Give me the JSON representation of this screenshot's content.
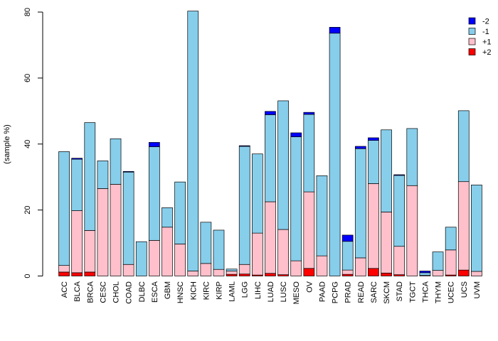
{
  "chart_data": {
    "type": "bar",
    "stacked": true,
    "title": "",
    "xlabel": "",
    "ylabel": "(sample %)",
    "ylim": [
      0,
      80
    ],
    "yticks": [
      0,
      20,
      40,
      60,
      80
    ],
    "categories": [
      "ACC",
      "BLCA",
      "BRCA",
      "CESC",
      "CHOL",
      "COAD",
      "DLBC",
      "ESCA",
      "GBM",
      "HNSC",
      "KICH",
      "KIRC",
      "KIRP",
      "LAML",
      "LGG",
      "LIHC",
      "LUAD",
      "LUSC",
      "MESO",
      "OV",
      "PAAD",
      "PCPG",
      "PRAD",
      "READ",
      "SARC",
      "SKCM",
      "STAD",
      "TGCT",
      "THCA",
      "THYM",
      "UCEC",
      "UCS",
      "UVM"
    ],
    "series": [
      {
        "name": "+2",
        "color": "#ff0000",
        "values": [
          1.2,
          1.0,
          1.2,
          0,
          0,
          0,
          0,
          0,
          0,
          0,
          0,
          0,
          0,
          0.5,
          0.6,
          0.3,
          0.8,
          0.4,
          0,
          2.3,
          0,
          0,
          0.5,
          0,
          2.3,
          0.9,
          0.4,
          0,
          0,
          0,
          0.3,
          1.8,
          0
        ]
      },
      {
        "name": "+1",
        "color": "#ffc0cb",
        "values": [
          2.0,
          18.8,
          12.6,
          26.5,
          27.8,
          3.5,
          0,
          10.8,
          14.8,
          9.7,
          1.5,
          3.8,
          2.0,
          1.0,
          2.9,
          12.7,
          21.7,
          13.7,
          4.6,
          23.2,
          6.1,
          0,
          1.3,
          5.5,
          25.7,
          18.5,
          8.6,
          27.4,
          0.2,
          1.7,
          7.6,
          26.8,
          1.4
        ]
      },
      {
        "name": "-1",
        "color": "#87ceeb",
        "values": [
          34.5,
          15.6,
          32.7,
          8.4,
          13.8,
          28.0,
          10.4,
          28.4,
          5.9,
          18.8,
          78.8,
          12.5,
          11.9,
          0.6,
          35.8,
          24.0,
          26.4,
          39.0,
          37.6,
          23.5,
          24.3,
          73.6,
          8.7,
          33.1,
          13.1,
          24.9,
          21.5,
          17.3,
          0.8,
          5.6,
          6.9,
          21.5,
          26.2
        ]
      },
      {
        "name": "-2",
        "color": "#0000ff",
        "values": [
          0,
          0.3,
          0,
          0,
          0,
          0.2,
          0,
          1.3,
          0,
          0,
          0,
          0,
          0,
          0,
          0.2,
          0,
          1.0,
          0,
          1.2,
          0.6,
          0,
          1.8,
          1.9,
          0.7,
          0.8,
          0,
          0.2,
          0,
          0.5,
          0,
          0,
          0,
          0
        ]
      }
    ],
    "legend": {
      "placement": "top-right",
      "entries": [
        {
          "label": "-2",
          "color": "#0000ff"
        },
        {
          "label": "-1",
          "color": "#87ceeb"
        },
        {
          "label": "+1",
          "color": "#ffc0cb"
        },
        {
          "label": "+2",
          "color": "#ff0000"
        }
      ]
    },
    "grid": false
  }
}
